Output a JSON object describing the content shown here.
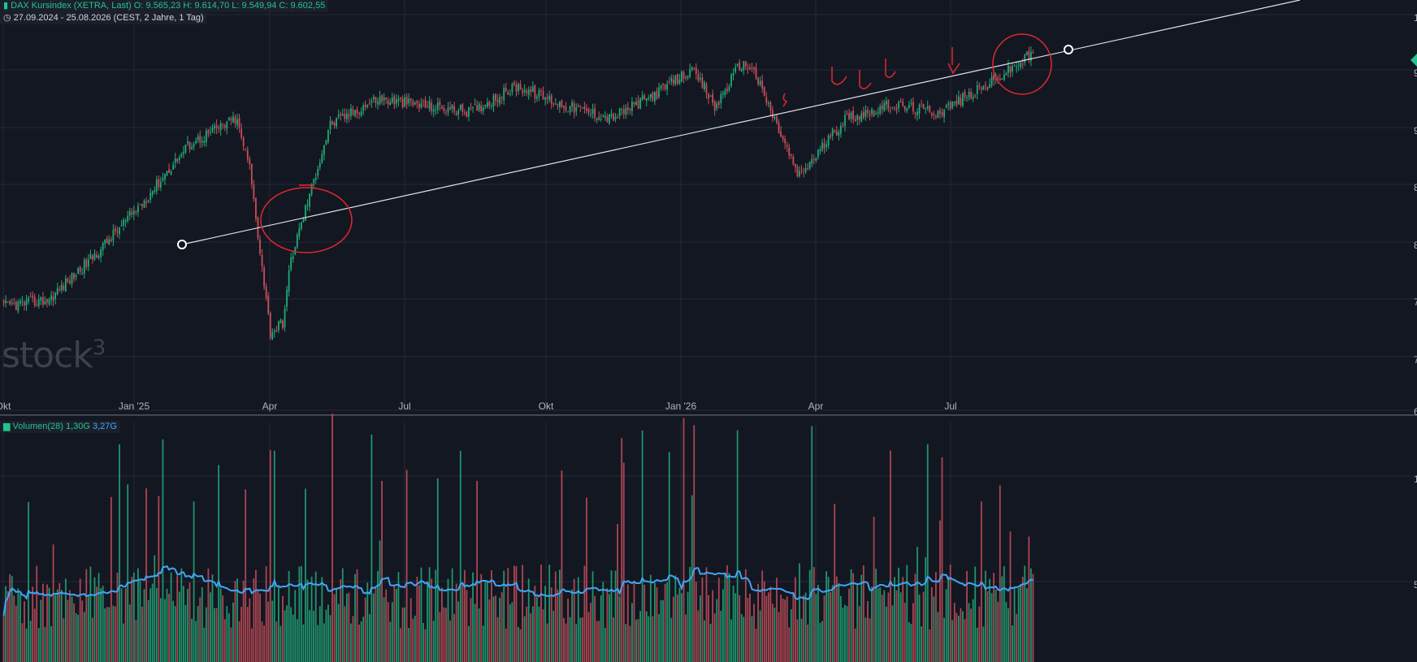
{
  "header": {
    "symbol": "DAX Kursindex (XETRA, Last)",
    "open_label": "O:",
    "open": "9.565,23",
    "high_label": "H:",
    "high": "9.614,70",
    "low_label": "L:",
    "low": "9.549,94",
    "close_label": "C:",
    "close": "9.602,55",
    "range": "27.09.2024 - 25.08.2026",
    "range_detail": "(CEST, 2 Jahre, 1 Tag)"
  },
  "watermark": {
    "text": "stock",
    "sup": "3"
  },
  "volume_legend": {
    "name": "Volumen(28)",
    "value1": "1,30G",
    "value2": "3,27G"
  },
  "colors": {
    "up": "#22ab79",
    "down": "#c94f59",
    "volume_ma": "#42a5f5",
    "trendline": "#e0e3eb",
    "annotation": "#e0292e",
    "grid": "#262a35",
    "background": "#131722"
  },
  "chart_data": {
    "type": "candlestick",
    "x_ticks": [
      "Okt",
      "Jan '25",
      "Apr",
      "Jul",
      "Okt",
      "Jan '26",
      "Apr",
      "Jul"
    ],
    "date_range": [
      "27.09.2024",
      "25.08.2026"
    ],
    "price_series_approx": [
      {
        "month": "Okt 2024",
        "value": 7650
      },
      {
        "month": "Nov 2024",
        "value": 7700
      },
      {
        "month": "Dez 2024",
        "value": 8050
      },
      {
        "month": "Jan 2025",
        "value": 8450
      },
      {
        "month": "Feb 2025",
        "value": 8900
      },
      {
        "month": "Mär 2025",
        "value": 9100
      },
      {
        "month": "Apr 2025",
        "value": 7800
      },
      {
        "month": "Mai 2025",
        "value": 9050
      },
      {
        "month": "Jun 2025",
        "value": 9250
      },
      {
        "month": "Jul 2025",
        "value": 9200
      },
      {
        "month": "Aug 2025",
        "value": 9150
      },
      {
        "month": "Sep 2025",
        "value": 9350
      },
      {
        "month": "Okt 2025",
        "value": 9200
      },
      {
        "month": "Nov 2025",
        "value": 9100
      },
      {
        "month": "Dez 2025",
        "value": 9300
      },
      {
        "month": "Jan 2026",
        "value": 9550
      },
      {
        "month": "Feb 2026",
        "value": 9500
      },
      {
        "month": "Mär 2026",
        "value": 8650
      },
      {
        "month": "Apr 2026",
        "value": 9100
      },
      {
        "month": "Mai 2026",
        "value": 9200
      },
      {
        "month": "Jun 2026",
        "value": 9150
      },
      {
        "month": "Jul 2026",
        "value": 9350
      },
      {
        "month": "Aug 2026",
        "value": 9600
      }
    ],
    "last_close": 9602.55,
    "volume_ma_period": 28,
    "volume_values": [
      "1,30G",
      "3,27G"
    ]
  }
}
